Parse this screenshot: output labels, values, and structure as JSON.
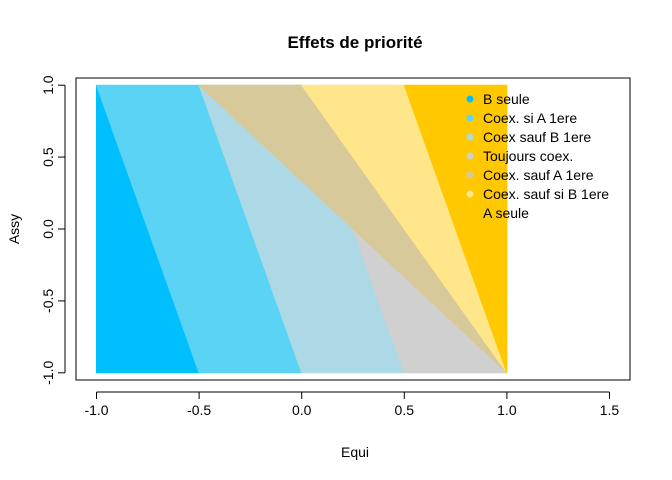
{
  "chart_data": {
    "type": "scatter",
    "title": "Effets de priorité",
    "xlabel": "Equi",
    "ylabel": "Assy",
    "xlim": [
      -1.1,
      1.6
    ],
    "ylim": [
      -1.05,
      1.05
    ],
    "x_ticks": [
      -1.0,
      -0.5,
      0.0,
      0.5,
      1.0,
      1.5
    ],
    "x_tick_labels": [
      "-1.0",
      "-0.5",
      "0.0",
      "0.5",
      "1.0",
      "1.5"
    ],
    "y_ticks": [
      -1.0,
      -0.5,
      0.0,
      0.5,
      1.0
    ],
    "y_tick_labels": [
      "-1.0",
      "-0.5",
      "0.0",
      "0.5",
      "1.0"
    ],
    "grid": false,
    "legend_position": "top-right",
    "grid_range": {
      "x": [
        -1.0,
        1.0
      ],
      "y": [
        -1.0,
        1.0
      ]
    },
    "regions": [
      {
        "name": "B seule",
        "color": "#00bfff",
        "rule": "x < -0.5 - 0.5*y"
      },
      {
        "name": "Coex. si A 1ere",
        "color": "#5bd3f5",
        "rule": "-0.5 - 0.5*y <= x < -0.5*y"
      },
      {
        "name": "Coex sauf B 1ere",
        "color": "#add8e6",
        "rule": "-0.5*y <= x < 0.5 - 0.5*y"
      },
      {
        "name": "Toujours coex.",
        "color": "#d0d0d0",
        "rule": "x >= 0.5 - 0.5*y and x < 0.5 - 0.5*y + slope band"
      },
      {
        "name": "Coex. sauf A 1ere",
        "color": "#d8c99a",
        "rule": "x >= -0.5 + 1.0*(1+y)*0.5 + 0.5 band"
      },
      {
        "name": "Coex. sauf si B 1ere",
        "color": "#ffe68a",
        "rule": "band"
      },
      {
        "name": "A seule",
        "color": "#ffc800",
        "rule": "band"
      }
    ],
    "boundaries": {
      "b1": {
        "top": -1.0,
        "bottom": -0.5
      },
      "b2": {
        "top": -0.5,
        "bottom": 0.0
      },
      "b3": {
        "top": -0.0,
        "bottom": 0.5
      },
      "b4": {
        "top": -0.5,
        "bottom": 1.0
      },
      "b5": {
        "top": 0.0,
        "bottom": 1.0
      },
      "b6": {
        "top": 0.5,
        "bottom": 1.0
      }
    },
    "legend": [
      {
        "label": "B seule",
        "color": "#00bfff"
      },
      {
        "label": "Coex. si A 1ere",
        "color": "#5bd3f5"
      },
      {
        "label": "Coex sauf B 1ere",
        "color": "#add8e6"
      },
      {
        "label": "Toujours coex.",
        "color": "#d0d0d0"
      },
      {
        "label": "Coex. sauf A 1ere",
        "color": "#d8c99a"
      },
      {
        "label": "Coex. sauf si B 1ere",
        "color": "#ffe68a"
      },
      {
        "label": "A seule",
        "color": "#ffc800"
      }
    ]
  }
}
